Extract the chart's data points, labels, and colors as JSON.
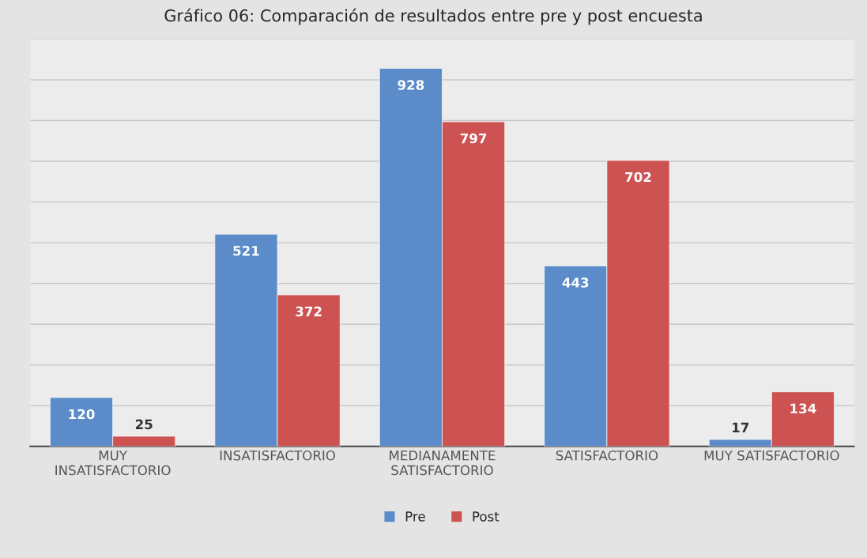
{
  "chart_data": {
    "type": "bar",
    "title": "Gráfico 06: Comparación de resultados entre pre y post encuesta",
    "categories": [
      "MUY\nINSATISFACTORIO",
      "INSATISFACTORIO",
      "MEDIANAMENTE\nSATISFACTORIO",
      "SATISFACTORIO",
      "MUY SATISFACTORIO"
    ],
    "series": [
      {
        "name": "Pre",
        "color": "#5b8bc9",
        "values": [
          120,
          521,
          928,
          443,
          17
        ]
      },
      {
        "name": "Post",
        "color": "#cd5353",
        "values": [
          25,
          372,
          797,
          702,
          134
        ]
      }
    ],
    "ylim": [
      0,
      1000
    ],
    "yticks": [
      {
        "value": 0,
        "label": null
      },
      {
        "value": 100,
        "label": null
      },
      {
        "value": 200,
        "label": null
      },
      {
        "value": 300,
        "label": null
      },
      {
        "value": 400,
        "label": null
      },
      {
        "value": 500,
        "label": null
      },
      {
        "value": 600,
        "label": null
      },
      {
        "value": 700,
        "label": null
      },
      {
        "value": 800,
        "label": null
      },
      {
        "value": 900,
        "label": null
      },
      {
        "value": 1000,
        "label": null
      }
    ],
    "tick_labels": "x",
    "grid": "y",
    "legend": "bottom",
    "data_labels": true
  }
}
